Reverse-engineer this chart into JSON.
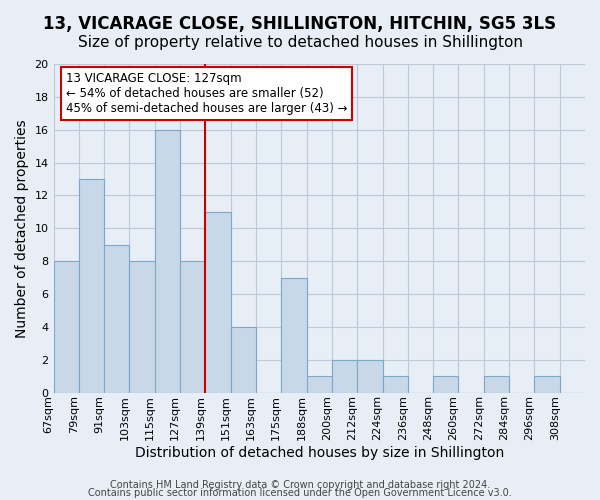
{
  "title": "13, VICARAGE CLOSE, SHILLINGTON, HITCHIN, SG5 3LS",
  "subtitle": "Size of property relative to detached houses in Shillington",
  "xlabel": "Distribution of detached houses by size in Shillington",
  "ylabel": "Number of detached properties",
  "bin_labels": [
    "67sqm",
    "79sqm",
    "91sqm",
    "103sqm",
    "115sqm",
    "127sqm",
    "139sqm",
    "151sqm",
    "163sqm",
    "175sqm",
    "188sqm",
    "200sqm",
    "212sqm",
    "224sqm",
    "236sqm",
    "248sqm",
    "260sqm",
    "272sqm",
    "284sqm",
    "296sqm",
    "308sqm"
  ],
  "bar_values": [
    8,
    13,
    9,
    8,
    16,
    8,
    11,
    4,
    0,
    7,
    1,
    2,
    2,
    1,
    0,
    1,
    0,
    1,
    0,
    1,
    0
  ],
  "bar_color": "#c8d8e8",
  "bar_edge_color": "#7aa8c8",
  "highlight_index": 5,
  "vline_color": "#cc0000",
  "annotation_title": "13 VICARAGE CLOSE: 127sqm",
  "annotation_line1": "← 54% of detached houses are smaller (52)",
  "annotation_line2": "45% of semi-detached houses are larger (43) →",
  "annotation_box_color": "#ffffff",
  "annotation_border_color": "#cc0000",
  "ylim": [
    0,
    20
  ],
  "yticks": [
    0,
    2,
    4,
    6,
    8,
    10,
    12,
    14,
    16,
    18,
    20
  ],
  "grid_color": "#c0c8d8",
  "bg_color": "#e8eef5",
  "footer1": "Contains HM Land Registry data © Crown copyright and database right 2024.",
  "footer2": "Contains public sector information licensed under the Open Government Licence v3.0.",
  "title_fontsize": 12,
  "subtitle_fontsize": 11,
  "axis_label_fontsize": 10,
  "tick_fontsize": 8,
  "footer_fontsize": 7
}
